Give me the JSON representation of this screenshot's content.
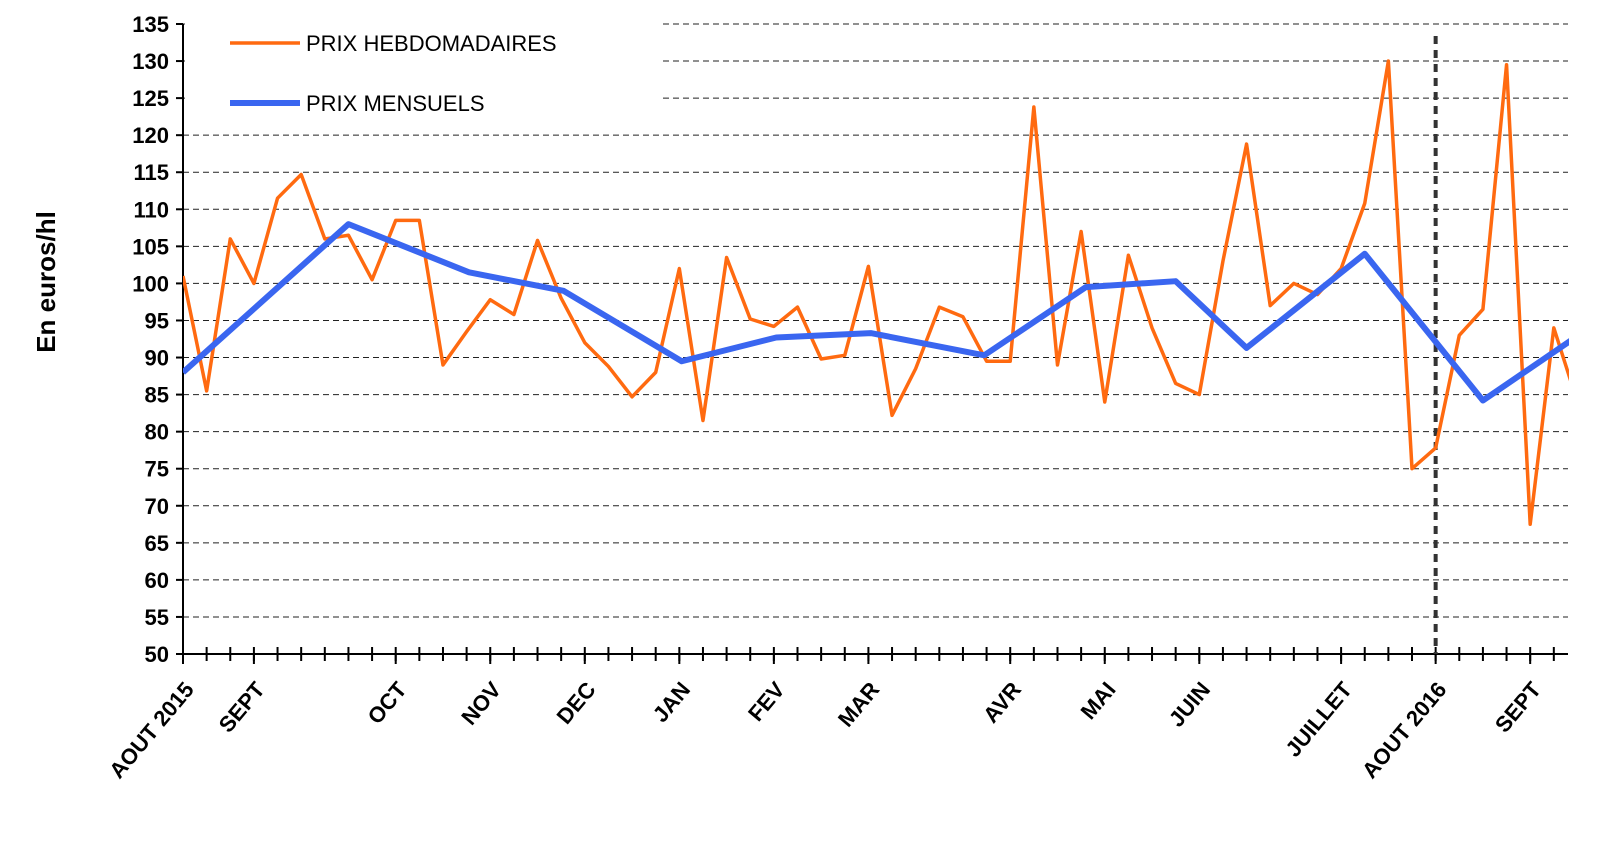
{
  "chart_data": {
    "type": "line",
    "y_label": "En euros/hl",
    "xlim": [
      0,
      58.6
    ],
    "ylim": [
      50,
      135
    ],
    "yticks": [
      50,
      55,
      60,
      65,
      70,
      75,
      80,
      85,
      90,
      95,
      100,
      105,
      110,
      115,
      120,
      125,
      130,
      135
    ],
    "xticks": [
      {
        "value": 0,
        "label": "AOUT 2015"
      },
      {
        "value": 3,
        "label": "SEPT"
      },
      {
        "value": 9,
        "label": "OCT"
      },
      {
        "value": 13,
        "label": "NOV"
      },
      {
        "value": 17,
        "label": "DEC"
      },
      {
        "value": 21,
        "label": "JAN"
      },
      {
        "value": 25,
        "label": "FEV"
      },
      {
        "value": 29,
        "label": "MAR"
      },
      {
        "value": 35,
        "label": "AVR"
      },
      {
        "value": 39,
        "label": "MAI"
      },
      {
        "value": 43,
        "label": "JUIN"
      },
      {
        "value": 49,
        "label": "JUILLET"
      },
      {
        "value": 53,
        "label": "AOUT 2016"
      },
      {
        "value": 57,
        "label": "SEPT"
      }
    ],
    "grid": true,
    "vline": 53,
    "legend": "upper left",
    "series": [
      {
        "name": "PRIX HEBDOMADAIRES",
        "color": "#ff6a10",
        "width": 3.5,
        "x": [
          0,
          1,
          2,
          3,
          4,
          5,
          6,
          7,
          8,
          9,
          10,
          11,
          12,
          13,
          14,
          15,
          16,
          17,
          18,
          19,
          20,
          21,
          22,
          23,
          24,
          25,
          26,
          27,
          28,
          29,
          30,
          31,
          32,
          33,
          34,
          35,
          36,
          37,
          38,
          39,
          40,
          41,
          42,
          43,
          44,
          45,
          46,
          47,
          48,
          49,
          50,
          51,
          52,
          53,
          54,
          55,
          56,
          57,
          58,
          59
        ],
        "values": [
          101,
          85.5,
          106,
          100,
          111.5,
          114.7,
          106,
          106.5,
          100.5,
          108.5,
          108.5,
          89,
          93.5,
          97.8,
          95.8,
          105.8,
          98,
          92,
          88.8,
          84.7,
          88,
          102,
          81.5,
          103.5,
          95.2,
          94.2,
          96.8,
          89.8,
          90.3,
          102.3,
          82.2,
          88.5,
          96.8,
          95.5,
          89.5,
          89.5,
          123.8,
          89,
          107,
          84,
          103.8,
          94,
          86.5,
          85,
          103,
          118.8,
          97,
          100,
          98.5,
          102,
          110.8,
          130,
          75,
          77.8,
          93,
          96.5,
          129.5,
          67.5,
          94,
          84
        ]
      },
      {
        "name": "PRIX MENSUELS",
        "color": "#3a66f0",
        "width": 6,
        "x": [
          0,
          7,
          12.1,
          16.1,
          21.1,
          25.1,
          29.1,
          33.9,
          38.2,
          42,
          45,
          50,
          55,
          59.5
        ],
        "values": [
          88,
          108,
          101.5,
          99,
          89.5,
          92.7,
          93.3,
          90.3,
          99.5,
          100.3,
          91.3,
          104,
          84.2,
          94
        ]
      }
    ]
  }
}
